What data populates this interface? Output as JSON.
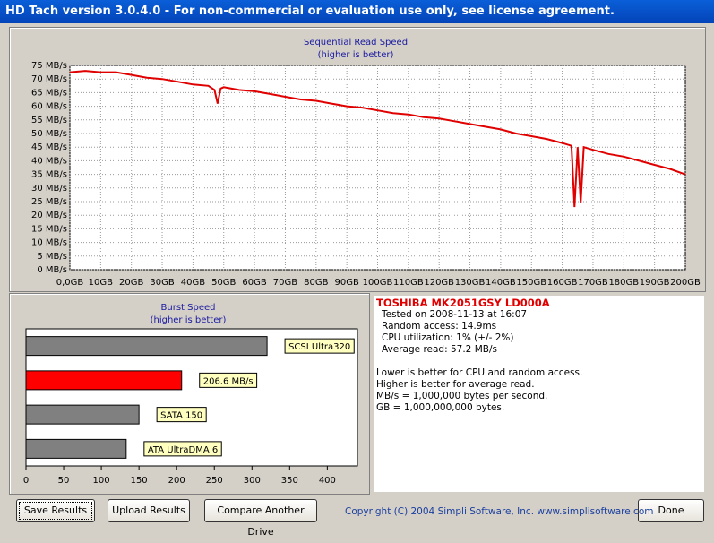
{
  "window": {
    "title": "HD Tach version 3.0.4.0  - For non-commercial or evaluation use only, see license agreement."
  },
  "chart_data": [
    {
      "type": "line",
      "title": "Sequential Read Speed",
      "subtitle": "(higher is better)",
      "color": "#e00000",
      "grid": true,
      "x": [
        0,
        5,
        10,
        15,
        20,
        25,
        30,
        35,
        40,
        45,
        47,
        48,
        49,
        50,
        55,
        60,
        65,
        70,
        75,
        80,
        85,
        90,
        95,
        100,
        105,
        110,
        115,
        120,
        125,
        130,
        135,
        140,
        145,
        150,
        155,
        160,
        163,
        164,
        165,
        166,
        167,
        170,
        175,
        180,
        185,
        190,
        195,
        200
      ],
      "values": [
        72.5,
        73,
        72.5,
        72.5,
        71.5,
        70.5,
        70,
        69,
        68,
        67.5,
        66,
        61,
        66.5,
        67,
        66,
        65.5,
        64.5,
        63.5,
        62.5,
        62,
        61,
        60,
        59.5,
        58.5,
        57.5,
        57,
        56,
        55.5,
        54.5,
        53.5,
        52.5,
        51.5,
        50,
        49,
        48,
        46.5,
        45.5,
        23,
        45,
        24.5,
        45,
        44,
        42.5,
        41.5,
        40,
        38.5,
        37,
        35
      ],
      "xlim": [
        0,
        200
      ],
      "ylim": [
        0,
        75
      ],
      "xticks": [
        {
          "value": 0,
          "label": "0,0GB"
        },
        {
          "value": 10,
          "label": "10GB"
        },
        {
          "value": 20,
          "label": "20GB"
        },
        {
          "value": 30,
          "label": "30GB"
        },
        {
          "value": 40,
          "label": "40GB"
        },
        {
          "value": 50,
          "label": "50GB"
        },
        {
          "value": 60,
          "label": "60GB"
        },
        {
          "value": 70,
          "label": "70GB"
        },
        {
          "value": 80,
          "label": "80GB"
        },
        {
          "value": 90,
          "label": "90GB"
        },
        {
          "value": 100,
          "label": "100GB"
        },
        {
          "value": 110,
          "label": "110GB"
        },
        {
          "value": 120,
          "label": "120GB"
        },
        {
          "value": 130,
          "label": "130GB"
        },
        {
          "value": 140,
          "label": "140GB"
        },
        {
          "value": 150,
          "label": "150GB"
        },
        {
          "value": 160,
          "label": "160GB"
        },
        {
          "value": 170,
          "label": "170GB"
        },
        {
          "value": 180,
          "label": "180GB"
        },
        {
          "value": 190,
          "label": "190GB"
        },
        {
          "value": 200,
          "label": "200GB"
        }
      ],
      "yticks": [
        {
          "value": 0,
          "label": "0 MB/s"
        },
        {
          "value": 5,
          "label": "5 MB/s"
        },
        {
          "value": 10,
          "label": "10 MB/s"
        },
        {
          "value": 15,
          "label": "15 MB/s"
        },
        {
          "value": 20,
          "label": "20 MB/s"
        },
        {
          "value": 25,
          "label": "25 MB/s"
        },
        {
          "value": 30,
          "label": "30 MB/s"
        },
        {
          "value": 35,
          "label": "35 MB/s"
        },
        {
          "value": 40,
          "label": "40 MB/s"
        },
        {
          "value": 45,
          "label": "45 MB/s"
        },
        {
          "value": 50,
          "label": "50 MB/s"
        },
        {
          "value": 55,
          "label": "55 MB/s"
        },
        {
          "value": 60,
          "label": "60 MB/s"
        },
        {
          "value": 65,
          "label": "65 MB/s"
        },
        {
          "value": 70,
          "label": "70 MB/s"
        },
        {
          "value": 75,
          "label": "75 MB/s"
        }
      ]
    },
    {
      "type": "hbar",
      "title": "Burst Speed",
      "subtitle": "(higher is better)",
      "categories": [
        "SCSI Ultra320",
        null,
        "SATA 150",
        "ATA UltraDMA 6"
      ],
      "values": [
        320,
        206.6,
        150,
        133
      ],
      "value_labels": [
        null,
        "206.6 MB/s",
        null,
        null
      ],
      "colors": [
        "#808080",
        "#ff0000",
        "#808080",
        "#808080"
      ],
      "xlim": [
        0,
        440
      ],
      "xticks": [
        0,
        50,
        100,
        150,
        200,
        250,
        300,
        350,
        400
      ]
    }
  ],
  "info": {
    "drive": "TOSHIBA MK2051GSY LD000A",
    "details": [
      "Tested on 2008-11-13 at 16:07",
      "Random access: 14.9ms",
      "CPU utilization: 1% (+/- 2%)",
      "Average read: 57.2 MB/s"
    ],
    "notes": [
      "Lower is better for CPU and random access.",
      "Higher is better for average read.",
      "MB/s = 1,000,000 bytes per second.",
      "GB = 1,000,000,000 bytes."
    ]
  },
  "buttons": [
    "Save Results",
    "Upload Results",
    "Compare Another Drive",
    "Done"
  ],
  "footer": {
    "copyright": "Copyright (C) 2004 Simpli Software, Inc. www.simplisoftware.com"
  }
}
